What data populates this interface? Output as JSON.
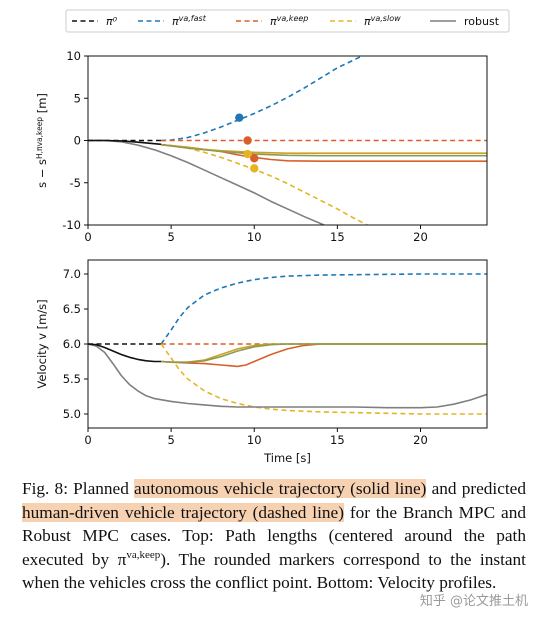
{
  "chart_data": [
    {
      "type": "line",
      "title": "",
      "xlabel": "",
      "ylabel": "s − s^{H,π^{va,keep}} [m]",
      "xlim": [
        0,
        24
      ],
      "ylim": [
        -10,
        10
      ],
      "xticks": [
        0,
        5,
        10,
        15,
        20
      ],
      "yticks": [
        -10,
        -5,
        0,
        5,
        10
      ],
      "grid": false,
      "legend_position": "top",
      "series": [
        {
          "name": "π⁰",
          "style": "dashed",
          "color": "#111111",
          "x": [
            0,
            1,
            2,
            3,
            4.4
          ],
          "y": [
            0,
            0,
            0,
            0,
            0
          ]
        },
        {
          "name": "π^{va,fast}",
          "style": "dashed",
          "color": "#1f77b4",
          "x": [
            4.4,
            5,
            6,
            7,
            8,
            9,
            10,
            11,
            12,
            13,
            14,
            15,
            16.7
          ],
          "y": [
            0,
            0.05,
            0.35,
            0.9,
            1.6,
            2.4,
            3.2,
            4.1,
            5.1,
            6.2,
            7.4,
            8.6,
            10.2
          ]
        },
        {
          "name": "π^{va,keep}",
          "style": "dashed",
          "color": "#d95f2a",
          "x": [
            4.4,
            24
          ],
          "y": [
            0,
            0
          ]
        },
        {
          "name": "π^{va,slow}",
          "style": "dashed",
          "color": "#e6b422",
          "x": [
            4.4,
            5,
            6,
            7,
            8,
            9,
            10,
            11,
            12,
            13,
            14,
            15,
            16,
            17
          ],
          "y": [
            -0.5,
            -0.6,
            -0.9,
            -1.4,
            -2.0,
            -2.7,
            -3.4,
            -4.2,
            -5.1,
            -6.1,
            -7.1,
            -8.1,
            -9.2,
            -10.2
          ]
        },
        {
          "name": "robust",
          "style": "solid",
          "color": "#7f7f7f",
          "x": [
            0,
            1,
            2,
            3,
            4,
            5,
            6,
            7,
            8,
            9,
            10,
            11,
            12,
            13,
            14.2
          ],
          "y": [
            0,
            0,
            -0.15,
            -0.55,
            -1.1,
            -1.8,
            -2.6,
            -3.5,
            -4.4,
            -5.3,
            -6.2,
            -7.2,
            -8.1,
            -9.0,
            -10
          ]
        },
        {
          "name": "",
          "style": "solid",
          "color": "#111111",
          "x": [
            0,
            1,
            2,
            3,
            4.4
          ],
          "y": [
            0,
            0,
            -0.05,
            -0.2,
            -0.45
          ]
        },
        {
          "name": "",
          "style": "solid",
          "color": "#d95f2a",
          "x": [
            4.4,
            6,
            8,
            9,
            10,
            11,
            12,
            14,
            16,
            18,
            20,
            22,
            24
          ],
          "y": [
            -0.5,
            -0.8,
            -1.3,
            -1.7,
            -2.0,
            -2.25,
            -2.4,
            -2.45,
            -2.45,
            -2.45,
            -2.45,
            -2.45,
            -2.45
          ]
        },
        {
          "name": "",
          "style": "solid",
          "color": "#c9a227",
          "x": [
            4.4,
            6,
            7,
            8,
            9,
            10,
            12,
            14,
            16,
            18,
            20,
            22,
            24
          ],
          "y": [
            -0.5,
            -0.8,
            -1.05,
            -1.2,
            -1.3,
            -1.4,
            -1.5,
            -1.5,
            -1.5,
            -1.5,
            -1.5,
            -1.5,
            -1.5
          ]
        },
        {
          "name": "",
          "style": "solid",
          "color": "#8d9a4f",
          "x": [
            4.4,
            6,
            8,
            10,
            12,
            14,
            16,
            18,
            20,
            22,
            24
          ],
          "y": [
            -0.5,
            -0.9,
            -1.3,
            -1.6,
            -1.75,
            -1.8,
            -1.8,
            -1.8,
            -1.8,
            -1.8,
            -1.8
          ]
        }
      ],
      "markers": [
        {
          "x": 9.1,
          "y": 2.7,
          "color": "#1f77b4"
        },
        {
          "x": 9.6,
          "y": 0.0,
          "color": "#d95f2a"
        },
        {
          "x": 10.0,
          "y": -2.1,
          "color": "#d95f2a"
        },
        {
          "x": 9.6,
          "y": -1.6,
          "color": "#e6b422"
        },
        {
          "x": 10.0,
          "y": -3.3,
          "color": "#e6b422"
        }
      ]
    },
    {
      "type": "line",
      "title": "",
      "xlabel": "Time [s]",
      "ylabel": "Velocity v [m/s]",
      "xlim": [
        0,
        24
      ],
      "ylim": [
        4.8,
        7.2
      ],
      "xticks": [
        0,
        5,
        10,
        15,
        20
      ],
      "yticks": [
        5.0,
        5.5,
        6.0,
        6.5,
        7.0
      ],
      "grid": false,
      "series": [
        {
          "name": "π⁰",
          "style": "dashed",
          "color": "#111111",
          "x": [
            0,
            4.4
          ],
          "y": [
            6.0,
            6.0
          ]
        },
        {
          "name": "π^{va,fast}",
          "style": "dashed",
          "color": "#1f77b4",
          "x": [
            4.4,
            5,
            5.5,
            6,
            7,
            8,
            9,
            10,
            11,
            12,
            14,
            16,
            18,
            20,
            22,
            24
          ],
          "y": [
            6.0,
            6.2,
            6.38,
            6.52,
            6.7,
            6.8,
            6.87,
            6.92,
            6.95,
            6.97,
            6.985,
            6.99,
            6.995,
            7.0,
            7.0,
            7.0
          ]
        },
        {
          "name": "π^{va,keep}",
          "style": "dashed",
          "color": "#d95f2a",
          "x": [
            4.4,
            24
          ],
          "y": [
            6.0,
            6.0
          ]
        },
        {
          "name": "π^{va,slow}",
          "style": "dashed",
          "color": "#e6b422",
          "x": [
            4.4,
            5,
            5.5,
            6,
            7,
            8,
            9,
            10,
            11,
            12,
            14,
            16,
            18,
            20,
            22,
            24
          ],
          "y": [
            6.0,
            5.8,
            5.63,
            5.5,
            5.33,
            5.22,
            5.15,
            5.1,
            5.07,
            5.05,
            5.03,
            5.02,
            5.01,
            5.0,
            5.0,
            5.0
          ]
        },
        {
          "name": "robust",
          "style": "solid",
          "color": "#7f7f7f",
          "x": [
            0,
            0.5,
            1,
            1.5,
            2,
            2.5,
            3,
            3.5,
            4,
            5,
            6,
            7,
            8,
            9,
            10,
            12,
            14,
            16,
            18,
            20,
            21,
            22,
            23,
            24
          ],
          "y": [
            6.0,
            5.97,
            5.88,
            5.72,
            5.55,
            5.42,
            5.33,
            5.26,
            5.22,
            5.18,
            5.15,
            5.13,
            5.11,
            5.1,
            5.1,
            5.1,
            5.1,
            5.1,
            5.09,
            5.09,
            5.1,
            5.14,
            5.2,
            5.28
          ]
        },
        {
          "name": "",
          "style": "solid",
          "color": "#111111",
          "x": [
            0,
            0.5,
            1,
            1.5,
            2,
            2.5,
            3,
            3.5,
            4,
            4.4
          ],
          "y": [
            6.0,
            5.99,
            5.95,
            5.9,
            5.85,
            5.81,
            5.78,
            5.76,
            5.75,
            5.75
          ]
        },
        {
          "name": "",
          "style": "solid",
          "color": "#d95f2a",
          "x": [
            4.4,
            5,
            6,
            7,
            8,
            8.5,
            9,
            9.5,
            10,
            11,
            12,
            13,
            14,
            15,
            16,
            18,
            20,
            22,
            24
          ],
          "y": [
            5.75,
            5.74,
            5.73,
            5.72,
            5.7,
            5.69,
            5.68,
            5.7,
            5.75,
            5.85,
            5.93,
            5.98,
            6.0,
            6.0,
            6.0,
            6.0,
            6.0,
            6.0,
            6.0
          ]
        },
        {
          "name": "",
          "style": "solid",
          "color": "#c9a227",
          "x": [
            4.4,
            5,
            6,
            7,
            8,
            9,
            10,
            11,
            12,
            13,
            14,
            16,
            18,
            20,
            22,
            24
          ],
          "y": [
            5.75,
            5.74,
            5.74,
            5.77,
            5.85,
            5.93,
            5.98,
            6.0,
            6.0,
            6.0,
            6.0,
            6.0,
            6.0,
            6.0,
            6.0,
            6.0
          ]
        },
        {
          "name": "",
          "style": "solid",
          "color": "#8d9a4f",
          "x": [
            4.4,
            5,
            6,
            7,
            8,
            9,
            10,
            11,
            12,
            13,
            14,
            16,
            18,
            20,
            22,
            24
          ],
          "y": [
            5.75,
            5.74,
            5.74,
            5.76,
            5.82,
            5.9,
            5.96,
            5.99,
            6.0,
            6.0,
            6.0,
            6.0,
            6.0,
            6.0,
            6.0,
            6.0
          ]
        }
      ]
    }
  ],
  "legend": [
    {
      "label": "π⁰",
      "color": "#111111",
      "style": "dashed"
    },
    {
      "label": "π^{va,fast}",
      "color": "#1f77b4",
      "style": "dashed"
    },
    {
      "label": "π^{va,keep}",
      "color": "#d95f2a",
      "style": "dashed"
    },
    {
      "label": "π^{va,slow}",
      "color": "#e6b422",
      "style": "dashed"
    },
    {
      "label": "robust",
      "color": "#7f7f7f",
      "style": "solid"
    }
  ],
  "caption": {
    "prefix": "Fig. 8: Planned ",
    "highlight1": "autonomous vehicle trajectory (solid line)",
    "mid1": " and predicted ",
    "highlight2": "human-driven vehicle trajectory (dashed line)",
    "mid2": " for the Branch MPC and Robust MPC cases. Top: Path lengths (centered around the path executed by π",
    "sup": "va,keep",
    "suffix": "). The rounded markers correspond to the instant when the vehicles cross the conflict point. Bottom: Velocity profiles."
  },
  "watermark": "知乎 @论文推土机"
}
